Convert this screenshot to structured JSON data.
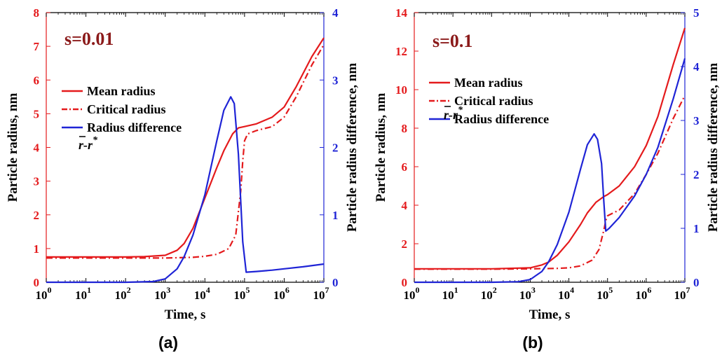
{
  "colors": {
    "red": "#e41a1c",
    "blue": "#1f24d6",
    "annotation": "#8b1a1a",
    "axis": "#000000"
  },
  "chart_data": [
    {
      "type": "line",
      "panel_label": "(a)",
      "annotation": "s=0.01",
      "xlabel": "Time, s",
      "ylabel": "Particle radius, nm",
      "ylabel_right": "Particle radius difference, nm",
      "xscale": "log",
      "xlim": [
        1,
        10000000
      ],
      "ylim": [
        0,
        8
      ],
      "ylim_right": [
        0,
        4
      ],
      "xticks": [
        {
          "b": "10",
          "e": "0"
        },
        {
          "b": "10",
          "e": "1"
        },
        {
          "b": "10",
          "e": "2"
        },
        {
          "b": "10",
          "e": "3"
        },
        {
          "b": "10",
          "e": "4"
        },
        {
          "b": "10",
          "e": "5"
        },
        {
          "b": "10",
          "e": "6"
        },
        {
          "b": "10",
          "e": "7"
        }
      ],
      "yticks": [
        "0",
        "1",
        "2",
        "3",
        "4",
        "5",
        "6",
        "7",
        "8"
      ],
      "yticks_right": [
        "0",
        "1",
        "2",
        "3",
        "4"
      ],
      "legend": {
        "position": "left",
        "entries": [
          "Mean radius",
          "Critical radius",
          "Radius difference"
        ],
        "formula": {
          "r": "r",
          "dash": "-",
          "rstar": "r",
          "star": "*"
        }
      },
      "series": [
        {
          "name": "Mean radius",
          "axis": "left",
          "color": "#e41a1c",
          "style": "solid",
          "x": [
            1,
            10,
            100,
            300,
            1000,
            2000,
            3000,
            5000,
            10000,
            20000,
            30000,
            50000,
            70000,
            100000,
            200000,
            500000,
            1000000,
            2000000,
            5000000,
            10000000
          ],
          "y": [
            0.75,
            0.75,
            0.75,
            0.76,
            0.8,
            0.95,
            1.15,
            1.6,
            2.5,
            3.4,
            3.9,
            4.4,
            4.58,
            4.62,
            4.7,
            4.9,
            5.2,
            5.8,
            6.7,
            7.25
          ]
        },
        {
          "name": "Critical radius",
          "axis": "left",
          "color": "#e41a1c",
          "style": "dashdot",
          "x": [
            1,
            10,
            100,
            1000,
            5000,
            10000,
            20000,
            40000,
            60000,
            80000,
            90000,
            100000,
            120000,
            200000,
            500000,
            1000000,
            2000000,
            5000000,
            10000000
          ],
          "y": [
            0.72,
            0.72,
            0.72,
            0.72,
            0.74,
            0.77,
            0.83,
            1.0,
            1.4,
            2.7,
            3.6,
            4.2,
            4.4,
            4.5,
            4.62,
            4.9,
            5.5,
            6.45,
            7.05
          ]
        },
        {
          "name": "Radius difference",
          "axis": "right",
          "color": "#1f24d6",
          "style": "solid",
          "x": [
            1,
            10,
            100,
            500,
            1000,
            2000,
            3000,
            5000,
            10000,
            20000,
            30000,
            45000,
            55000,
            70000,
            90000,
            110000,
            200000,
            500000,
            1000000,
            3000000,
            10000000
          ],
          "y": [
            0,
            0,
            0,
            0.01,
            0.05,
            0.2,
            0.38,
            0.7,
            1.3,
            2.1,
            2.55,
            2.75,
            2.65,
            1.9,
            0.6,
            0.15,
            0.16,
            0.18,
            0.2,
            0.23,
            0.27
          ]
        }
      ]
    },
    {
      "type": "line",
      "panel_label": "(b)",
      "annotation": "s=0.1",
      "xlabel": "Time, s",
      "ylabel": "Particle radius, nm",
      "ylabel_right": "Particle radius difference, nm",
      "xscale": "log",
      "xlim": [
        1,
        10000000
      ],
      "ylim": [
        0,
        14
      ],
      "ylim_right": [
        0,
        5
      ],
      "xticks": [
        {
          "b": "10",
          "e": "0"
        },
        {
          "b": "10",
          "e": "1"
        },
        {
          "b": "10",
          "e": "2"
        },
        {
          "b": "10",
          "e": "3"
        },
        {
          "b": "10",
          "e": "4"
        },
        {
          "b": "10",
          "e": "5"
        },
        {
          "b": "10",
          "e": "6"
        },
        {
          "b": "10",
          "e": "7"
        }
      ],
      "yticks": [
        "0",
        "2",
        "4",
        "6",
        "8",
        "10",
        "12",
        "14"
      ],
      "yticks_right": [
        "0",
        "1",
        "2",
        "3",
        "4",
        "5"
      ],
      "legend": {
        "position": "left",
        "entries": [
          "Mean radius",
          "Critical radius",
          "Radius difference"
        ],
        "formula": {
          "r": "r",
          "dash": "-",
          "rstar": "r",
          "star": "*"
        }
      },
      "series": [
        {
          "name": "Mean radius",
          "axis": "left",
          "color": "#e41a1c",
          "style": "solid",
          "x": [
            1,
            10,
            100,
            1000,
            2000,
            3000,
            5000,
            10000,
            20000,
            30000,
            50000,
            80000,
            100000,
            200000,
            500000,
            1000000,
            2000000,
            5000000,
            10000000
          ],
          "y": [
            0.7,
            0.7,
            0.7,
            0.75,
            0.9,
            1.05,
            1.4,
            2.1,
            3.0,
            3.6,
            4.15,
            4.45,
            4.55,
            5.0,
            6.0,
            7.1,
            8.6,
            11.3,
            13.2
          ]
        },
        {
          "name": "Critical radius",
          "axis": "left",
          "color": "#e41a1c",
          "style": "dashdot",
          "x": [
            1,
            10,
            100,
            1000,
            5000,
            10000,
            20000,
            40000,
            60000,
            80000,
            90000,
            100000,
            200000,
            500000,
            1000000,
            2000000,
            5000000,
            10000000
          ],
          "y": [
            0.68,
            0.68,
            0.68,
            0.7,
            0.72,
            0.75,
            0.85,
            1.15,
            1.7,
            2.7,
            3.2,
            3.45,
            3.75,
            4.6,
            5.6,
            6.7,
            8.5,
            9.7
          ]
        },
        {
          "name": "Radius difference",
          "axis": "right",
          "color": "#1f24d6",
          "style": "solid",
          "x": [
            1,
            10,
            100,
            500,
            1000,
            2000,
            3000,
            5000,
            10000,
            20000,
            30000,
            45000,
            55000,
            70000,
            80000,
            90000,
            110000,
            200000,
            500000,
            1000000,
            2000000,
            5000000,
            10000000
          ],
          "y": [
            0,
            0,
            0,
            0.01,
            0.05,
            0.2,
            0.38,
            0.7,
            1.3,
            2.1,
            2.55,
            2.75,
            2.65,
            2.2,
            1.5,
            0.95,
            1.0,
            1.2,
            1.6,
            2.0,
            2.5,
            3.4,
            4.15
          ]
        }
      ]
    }
  ]
}
